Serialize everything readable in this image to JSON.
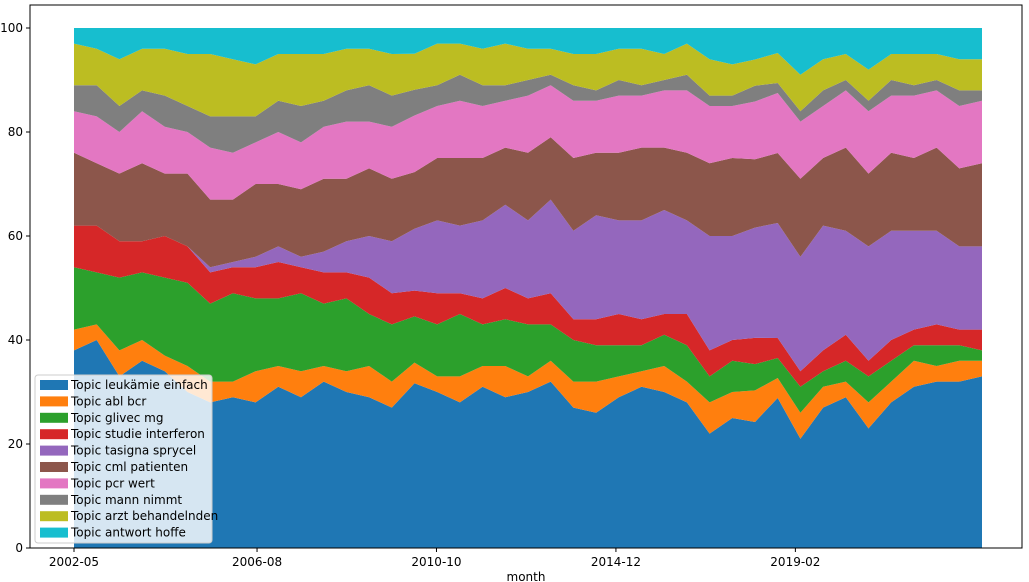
{
  "chart_data": {
    "type": "area",
    "stacked": true,
    "xlabel": "month",
    "ylabel": "",
    "ylim": [
      0,
      100
    ],
    "x_start": "2002-05",
    "x_end": "2023-06",
    "x_ticks": [
      "2002-05",
      "2006-08",
      "2010-10",
      "2014-12",
      "2019-02"
    ],
    "y_ticks": [
      0,
      20,
      40,
      60,
      80,
      100
    ],
    "legend_position": "lower-left",
    "grid": false,
    "series": [
      {
        "name": "Topic leukämie einfach",
        "color": "#1f77b4",
        "values": [
          38,
          40,
          33,
          36,
          34,
          30,
          28,
          29,
          28,
          31,
          29,
          32,
          30,
          29,
          27,
          32,
          30,
          28,
          31,
          29,
          30,
          32,
          27,
          26,
          29,
          31,
          30,
          28,
          22,
          25,
          24,
          30,
          21,
          27,
          29,
          23,
          28,
          31,
          32,
          32,
          33
        ]
      },
      {
        "name": "Topic abl bcr",
        "color": "#ff7f0e",
        "values": [
          4,
          3,
          5,
          4,
          3,
          5,
          4,
          3,
          6,
          4,
          5,
          3,
          4,
          6,
          5,
          4,
          3,
          5,
          4,
          6,
          3,
          4,
          5,
          6,
          4,
          3,
          5,
          4,
          6,
          5,
          6,
          4,
          5,
          4,
          3,
          5,
          4,
          5,
          3,
          4,
          3
        ]
      },
      {
        "name": "Topic glivec mg",
        "color": "#2ca02c",
        "values": [
          12,
          10,
          14,
          13,
          15,
          16,
          15,
          17,
          14,
          13,
          15,
          12,
          14,
          10,
          11,
          9,
          10,
          12,
          8,
          9,
          10,
          7,
          8,
          7,
          6,
          5,
          6,
          7,
          5,
          6,
          5,
          4,
          5,
          3,
          4,
          5,
          4,
          3,
          4,
          3,
          2
        ]
      },
      {
        "name": "Topic studie interferon",
        "color": "#d62728",
        "values": [
          8,
          9,
          7,
          6,
          8,
          7,
          6,
          5,
          6,
          7,
          5,
          6,
          5,
          7,
          6,
          5,
          6,
          4,
          5,
          6,
          5,
          6,
          4,
          5,
          6,
          5,
          4,
          6,
          5,
          4,
          5,
          4,
          3,
          4,
          5,
          3,
          4,
          3,
          4,
          3,
          4
        ]
      },
      {
        "name": "Topic tasigna sprycel",
        "color": "#9467bd",
        "values": [
          0,
          0,
          0,
          0,
          0,
          0,
          1,
          1,
          2,
          3,
          2,
          4,
          6,
          8,
          10,
          12,
          14,
          13,
          15,
          16,
          15,
          18,
          17,
          20,
          18,
          19,
          20,
          18,
          22,
          20,
          21,
          23,
          22,
          24,
          20,
          22,
          21,
          19,
          18,
          16,
          16
        ]
      },
      {
        "name": "Topic cml patienten",
        "color": "#8c564b",
        "values": [
          14,
          12,
          13,
          15,
          12,
          14,
          13,
          12,
          14,
          12,
          13,
          14,
          12,
          13,
          12,
          11,
          12,
          13,
          12,
          11,
          13,
          12,
          14,
          12,
          13,
          14,
          12,
          13,
          14,
          15,
          13,
          14,
          15,
          13,
          16,
          14,
          15,
          14,
          16,
          15,
          16
        ]
      },
      {
        "name": "Topic pcr wert",
        "color": "#e377c2",
        "values": [
          8,
          9,
          8,
          10,
          9,
          8,
          10,
          9,
          8,
          10,
          9,
          10,
          11,
          9,
          10,
          11,
          10,
          11,
          10,
          9,
          11,
          10,
          11,
          10,
          11,
          10,
          11,
          12,
          11,
          10,
          11,
          12,
          11,
          10,
          11,
          12,
          11,
          12,
          11,
          12,
          12
        ]
      },
      {
        "name": "Topic mann nimmt",
        "color": "#7f7f7f",
        "values": [
          5,
          6,
          5,
          4,
          6,
          5,
          6,
          7,
          5,
          6,
          7,
          5,
          6,
          7,
          6,
          5,
          4,
          5,
          4,
          3,
          3,
          2,
          3,
          2,
          3,
          2,
          2,
          3,
          2,
          2,
          3,
          2,
          2,
          3,
          2,
          2,
          3,
          2,
          2,
          3,
          2
        ]
      },
      {
        "name": "Topic arzt behandelnden",
        "color": "#bcbd22",
        "values": [
          8,
          7,
          9,
          8,
          9,
          10,
          12,
          11,
          10,
          9,
          10,
          9,
          8,
          7,
          8,
          7,
          8,
          6,
          7,
          8,
          6,
          5,
          6,
          7,
          6,
          7,
          5,
          6,
          7,
          6,
          5,
          6,
          7,
          6,
          5,
          6,
          5,
          6,
          5,
          6,
          6
        ]
      },
      {
        "name": "Topic antwort hoffe",
        "color": "#17becf",
        "values": [
          3,
          4,
          6,
          4,
          4,
          5,
          5,
          6,
          7,
          5,
          5,
          5,
          4,
          4,
          5,
          5,
          3,
          3,
          4,
          3,
          4,
          4,
          5,
          5,
          4,
          4,
          5,
          3,
          6,
          7,
          6,
          5,
          9,
          6,
          5,
          8,
          5,
          5,
          5,
          6,
          6
        ]
      }
    ]
  }
}
